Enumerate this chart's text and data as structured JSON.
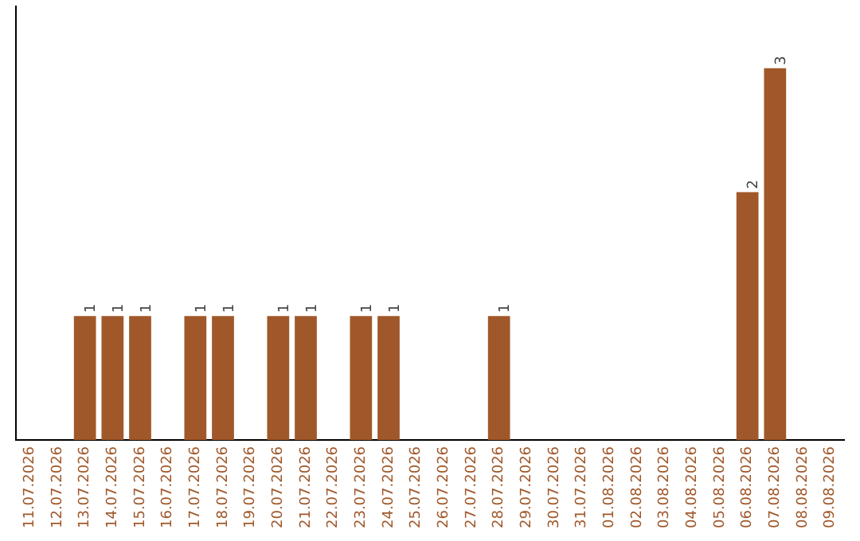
{
  "chart_data": {
    "type": "bar",
    "categories": [
      "11.07.2026",
      "12.07.2026",
      "13.07.2026",
      "14.07.2026",
      "15.07.2026",
      "16.07.2026",
      "17.07.2026",
      "18.07.2026",
      "19.07.2026",
      "20.07.2026",
      "21.07.2026",
      "22.07.2026",
      "23.07.2026",
      "24.07.2026",
      "25.07.2026",
      "26.07.2026",
      "27.07.2026",
      "28.07.2026",
      "29.07.2026",
      "30.07.2026",
      "31.07.2026",
      "01.08.2026",
      "02.08.2026",
      "03.08.2026",
      "04.08.2026",
      "05.08.2026",
      "06.08.2026",
      "07.08.2026",
      "08.08.2026",
      "09.08.2026"
    ],
    "values": [
      0,
      0,
      1,
      1,
      1,
      0,
      1,
      1,
      0,
      1,
      1,
      0,
      1,
      1,
      0,
      0,
      0,
      1,
      0,
      0,
      0,
      0,
      0,
      0,
      0,
      0,
      2,
      3,
      0,
      0
    ],
    "value_labels": [
      null,
      null,
      "1",
      "1",
      "1",
      null,
      "1",
      "1",
      null,
      "1",
      "1",
      null,
      "1",
      "1",
      null,
      null,
      null,
      "1",
      null,
      null,
      null,
      null,
      null,
      null,
      null,
      null,
      "2",
      "3",
      null,
      null
    ],
    "color": "#a0582a",
    "grid": false,
    "legend": false
  }
}
